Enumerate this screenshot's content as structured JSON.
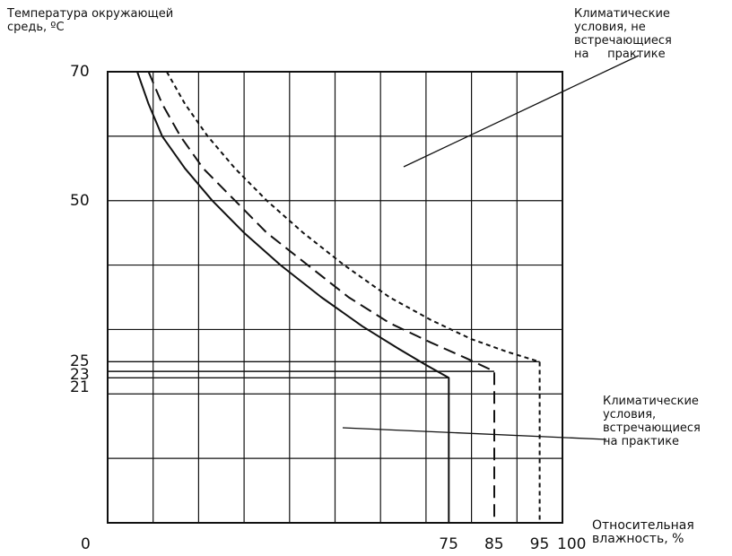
{
  "chart_data": {
    "type": "line",
    "ylabel": "Температура окружающей\nсредь, ºC",
    "xlabel": "Относительная\nвлажность, %",
    "xlim": [
      0,
      100
    ],
    "ylim": [
      0,
      70
    ],
    "x_tick_labels": [
      "0",
      "75",
      "85",
      "95",
      "100"
    ],
    "y_tick_labels": [
      "70",
      "50",
      "25",
      "23",
      "21"
    ],
    "x_ticks": [
      0,
      75,
      85,
      95,
      100
    ],
    "y_ticks": [
      70,
      50,
      25,
      23,
      21
    ],
    "grid": true,
    "series": [
      {
        "style": "solid",
        "color": "#111111",
        "x": [
          6.5,
          9,
          12,
          17,
          23,
          30,
          38,
          47,
          56,
          64,
          70,
          75,
          75
        ],
        "y": [
          70,
          65,
          60,
          55,
          50,
          45,
          40,
          35,
          30.5,
          27,
          24.5,
          22.5,
          0
        ]
      },
      {
        "style": "dashed",
        "color": "#111111",
        "x": [
          9,
          12,
          16,
          21,
          28,
          35,
          44,
          53,
          62,
          71,
          79,
          85,
          85
        ],
        "y": [
          70,
          65,
          60,
          55,
          50,
          45,
          40,
          35,
          31,
          28,
          25.5,
          23.5,
          0
        ]
      },
      {
        "style": "dotted",
        "color": "#111111",
        "x": [
          13,
          17,
          22,
          28,
          35,
          43,
          52,
          62,
          71,
          80,
          88,
          95,
          95
        ],
        "y": [
          70,
          65,
          60,
          55,
          50,
          45,
          40,
          35,
          31.5,
          28.5,
          26.5,
          25,
          0
        ]
      }
    ],
    "annotations": [
      {
        "text": "Климатические\nусловия, не\nвстречающиеся\nна     практике"
      },
      {
        "text": "Климатические\nусловия,\nвстречающиеся\nна практике"
      }
    ]
  }
}
